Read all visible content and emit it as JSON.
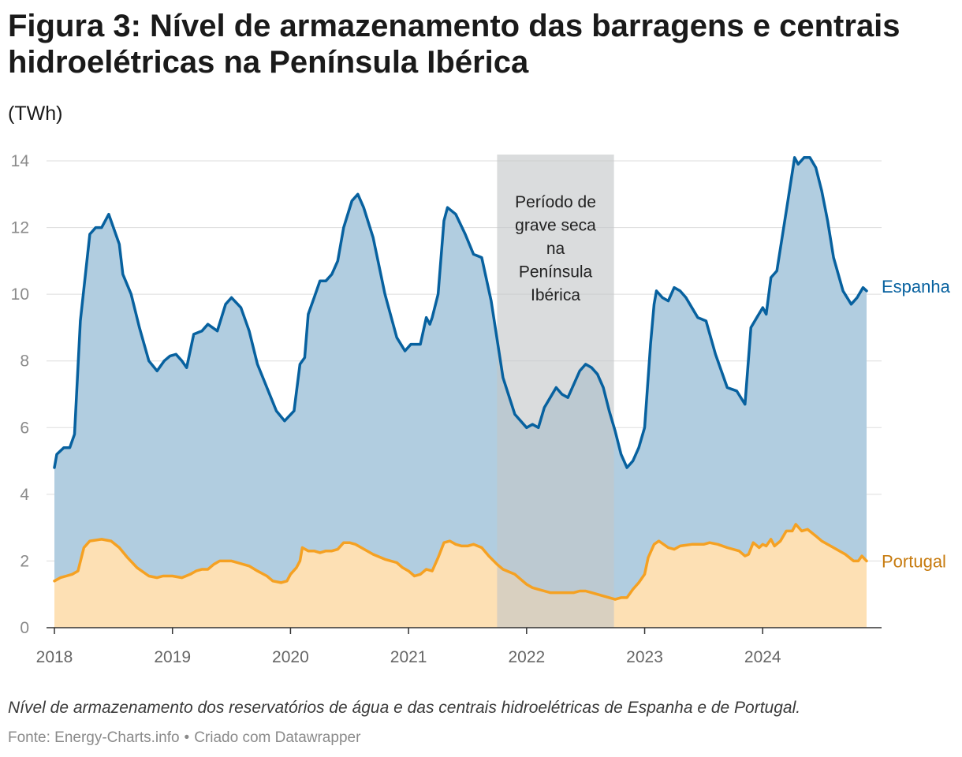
{
  "title": "Figura 3: Nível de armazenamento das barragens e centrais hidroelétricas na Península Ibérica",
  "unit_label": "(TWh)",
  "caption": "Nível de armazenamento dos reservatórios de água e das centrais hidroelétricas de Espanha e de Portugal.",
  "source": {
    "text": "Fonte: Energy-Charts.info",
    "separator": "•",
    "credit": "Criado com Datawrapper"
  },
  "colors": {
    "espanha_line": "#07619f",
    "espanha_fill": "#b1cde0",
    "portugal_line": "#f5a122",
    "portugal_fill": "#fde0b4",
    "portugal_label": "#c77b0f",
    "shade": "#c4c6c8",
    "grid": "#dddddd"
  },
  "chart_data": {
    "type": "area",
    "title": "Nível de armazenamento das barragens e centrais hidroelétricas na Península Ibérica",
    "xlabel": "",
    "ylabel": "(TWh)",
    "xlim": [
      2018.0,
      2024.9
    ],
    "ylim": [
      0,
      14
    ],
    "x_ticks": [
      2018,
      2019,
      2020,
      2021,
      2022,
      2023,
      2024
    ],
    "x_tick_labels": [
      "2018",
      "2019",
      "2020",
      "2021",
      "2022",
      "2023",
      "2024"
    ],
    "y_ticks": [
      0,
      2,
      4,
      6,
      8,
      10,
      12,
      14
    ],
    "y_tick_labels": [
      "0",
      "2",
      "4",
      "6",
      "8",
      "10",
      "12",
      "14"
    ],
    "shaded_region": {
      "x_start": 2021.75,
      "x_end": 2022.74,
      "label_lines": [
        "Período de",
        "grave seca",
        "na",
        "Península",
        "Ibérica"
      ]
    },
    "series": [
      {
        "name": "Espanha",
        "points": [
          [
            2018.0,
            4.8
          ],
          [
            2018.02,
            5.2
          ],
          [
            2018.08,
            5.4
          ],
          [
            2018.13,
            5.4
          ],
          [
            2018.17,
            5.8
          ],
          [
            2018.22,
            9.2
          ],
          [
            2018.3,
            11.8
          ],
          [
            2018.35,
            12.0
          ],
          [
            2018.4,
            12.0
          ],
          [
            2018.46,
            12.4
          ],
          [
            2018.55,
            11.5
          ],
          [
            2018.58,
            10.6
          ],
          [
            2018.65,
            10.0
          ],
          [
            2018.72,
            9.0
          ],
          [
            2018.8,
            8.0
          ],
          [
            2018.87,
            7.7
          ],
          [
            2018.93,
            8.0
          ],
          [
            2018.98,
            8.15
          ],
          [
            2019.03,
            8.2
          ],
          [
            2019.08,
            8.0
          ],
          [
            2019.12,
            7.8
          ],
          [
            2019.18,
            8.8
          ],
          [
            2019.25,
            8.9
          ],
          [
            2019.3,
            9.1
          ],
          [
            2019.38,
            8.9
          ],
          [
            2019.45,
            9.7
          ],
          [
            2019.5,
            9.9
          ],
          [
            2019.58,
            9.6
          ],
          [
            2019.65,
            8.9
          ],
          [
            2019.72,
            7.9
          ],
          [
            2019.8,
            7.2
          ],
          [
            2019.88,
            6.5
          ],
          [
            2019.95,
            6.2
          ],
          [
            2020.03,
            6.5
          ],
          [
            2020.08,
            7.9
          ],
          [
            2020.12,
            8.1
          ],
          [
            2020.15,
            9.4
          ],
          [
            2020.2,
            9.9
          ],
          [
            2020.25,
            10.4
          ],
          [
            2020.3,
            10.4
          ],
          [
            2020.35,
            10.6
          ],
          [
            2020.4,
            11.0
          ],
          [
            2020.45,
            12.0
          ],
          [
            2020.52,
            12.8
          ],
          [
            2020.57,
            13.0
          ],
          [
            2020.62,
            12.6
          ],
          [
            2020.7,
            11.7
          ],
          [
            2020.8,
            10.0
          ],
          [
            2020.9,
            8.7
          ],
          [
            2020.97,
            8.3
          ],
          [
            2021.02,
            8.5
          ],
          [
            2021.06,
            8.5
          ],
          [
            2021.1,
            8.5
          ],
          [
            2021.15,
            9.3
          ],
          [
            2021.18,
            9.1
          ],
          [
            2021.2,
            9.3
          ],
          [
            2021.25,
            10.0
          ],
          [
            2021.3,
            12.2
          ],
          [
            2021.33,
            12.6
          ],
          [
            2021.4,
            12.4
          ],
          [
            2021.48,
            11.8
          ],
          [
            2021.55,
            11.2
          ],
          [
            2021.62,
            11.1
          ],
          [
            2021.7,
            9.8
          ],
          [
            2021.8,
            7.5
          ],
          [
            2021.9,
            6.4
          ],
          [
            2022.0,
            6.0
          ],
          [
            2022.05,
            6.1
          ],
          [
            2022.1,
            6.0
          ],
          [
            2022.15,
            6.6
          ],
          [
            2022.2,
            6.9
          ],
          [
            2022.25,
            7.2
          ],
          [
            2022.3,
            7.0
          ],
          [
            2022.35,
            6.9
          ],
          [
            2022.4,
            7.3
          ],
          [
            2022.45,
            7.7
          ],
          [
            2022.5,
            7.9
          ],
          [
            2022.55,
            7.8
          ],
          [
            2022.6,
            7.6
          ],
          [
            2022.65,
            7.2
          ],
          [
            2022.7,
            6.5
          ],
          [
            2022.75,
            5.9
          ],
          [
            2022.8,
            5.2
          ],
          [
            2022.85,
            4.8
          ],
          [
            2022.9,
            5.0
          ],
          [
            2022.95,
            5.4
          ],
          [
            2023.0,
            6.0
          ],
          [
            2023.05,
            8.5
          ],
          [
            2023.08,
            9.7
          ],
          [
            2023.1,
            10.1
          ],
          [
            2023.15,
            9.9
          ],
          [
            2023.2,
            9.8
          ],
          [
            2023.25,
            10.2
          ],
          [
            2023.3,
            10.1
          ],
          [
            2023.35,
            9.9
          ],
          [
            2023.45,
            9.3
          ],
          [
            2023.52,
            9.2
          ],
          [
            2023.6,
            8.2
          ],
          [
            2023.7,
            7.2
          ],
          [
            2023.78,
            7.1
          ],
          [
            2023.85,
            6.7
          ],
          [
            2023.9,
            9.0
          ],
          [
            2023.95,
            9.3
          ],
          [
            2024.0,
            9.6
          ],
          [
            2024.03,
            9.4
          ],
          [
            2024.07,
            10.5
          ],
          [
            2024.12,
            10.7
          ],
          [
            2024.2,
            12.5
          ],
          [
            2024.27,
            14.1
          ],
          [
            2024.3,
            13.9
          ],
          [
            2024.35,
            14.1
          ],
          [
            2024.4,
            14.1
          ],
          [
            2024.45,
            13.8
          ],
          [
            2024.5,
            13.1
          ],
          [
            2024.55,
            12.2
          ],
          [
            2024.6,
            11.1
          ],
          [
            2024.68,
            10.1
          ],
          [
            2024.75,
            9.7
          ],
          [
            2024.8,
            9.9
          ],
          [
            2024.85,
            10.2
          ],
          [
            2024.88,
            10.1
          ]
        ]
      },
      {
        "name": "Portugal",
        "points": [
          [
            2018.0,
            1.4
          ],
          [
            2018.05,
            1.5
          ],
          [
            2018.1,
            1.55
          ],
          [
            2018.15,
            1.6
          ],
          [
            2018.2,
            1.7
          ],
          [
            2018.25,
            2.4
          ],
          [
            2018.3,
            2.6
          ],
          [
            2018.4,
            2.65
          ],
          [
            2018.48,
            2.6
          ],
          [
            2018.55,
            2.4
          ],
          [
            2018.62,
            2.1
          ],
          [
            2018.7,
            1.8
          ],
          [
            2018.8,
            1.55
          ],
          [
            2018.87,
            1.5
          ],
          [
            2018.92,
            1.55
          ],
          [
            2019.0,
            1.55
          ],
          [
            2019.08,
            1.5
          ],
          [
            2019.15,
            1.6
          ],
          [
            2019.2,
            1.7
          ],
          [
            2019.25,
            1.75
          ],
          [
            2019.3,
            1.75
          ],
          [
            2019.35,
            1.9
          ],
          [
            2019.4,
            2.0
          ],
          [
            2019.45,
            2.0
          ],
          [
            2019.5,
            2.0
          ],
          [
            2019.55,
            1.95
          ],
          [
            2019.65,
            1.85
          ],
          [
            2019.72,
            1.7
          ],
          [
            2019.8,
            1.55
          ],
          [
            2019.85,
            1.4
          ],
          [
            2019.92,
            1.35
          ],
          [
            2019.97,
            1.4
          ],
          [
            2020.0,
            1.6
          ],
          [
            2020.05,
            1.8
          ],
          [
            2020.08,
            2.0
          ],
          [
            2020.1,
            2.4
          ],
          [
            2020.15,
            2.3
          ],
          [
            2020.2,
            2.3
          ],
          [
            2020.25,
            2.25
          ],
          [
            2020.3,
            2.3
          ],
          [
            2020.35,
            2.3
          ],
          [
            2020.4,
            2.35
          ],
          [
            2020.45,
            2.55
          ],
          [
            2020.5,
            2.55
          ],
          [
            2020.55,
            2.5
          ],
          [
            2020.6,
            2.4
          ],
          [
            2020.7,
            2.2
          ],
          [
            2020.8,
            2.05
          ],
          [
            2020.9,
            1.95
          ],
          [
            2020.95,
            1.8
          ],
          [
            2021.0,
            1.7
          ],
          [
            2021.05,
            1.55
          ],
          [
            2021.1,
            1.6
          ],
          [
            2021.15,
            1.75
          ],
          [
            2021.2,
            1.7
          ],
          [
            2021.25,
            2.1
          ],
          [
            2021.3,
            2.55
          ],
          [
            2021.35,
            2.6
          ],
          [
            2021.4,
            2.5
          ],
          [
            2021.45,
            2.45
          ],
          [
            2021.5,
            2.45
          ],
          [
            2021.55,
            2.5
          ],
          [
            2021.62,
            2.4
          ],
          [
            2021.68,
            2.15
          ],
          [
            2021.75,
            1.9
          ],
          [
            2021.8,
            1.75
          ],
          [
            2021.9,
            1.6
          ],
          [
            2021.95,
            1.45
          ],
          [
            2022.0,
            1.3
          ],
          [
            2022.05,
            1.2
          ],
          [
            2022.1,
            1.15
          ],
          [
            2022.15,
            1.1
          ],
          [
            2022.2,
            1.05
          ],
          [
            2022.25,
            1.05
          ],
          [
            2022.3,
            1.05
          ],
          [
            2022.35,
            1.05
          ],
          [
            2022.4,
            1.05
          ],
          [
            2022.45,
            1.1
          ],
          [
            2022.5,
            1.1
          ],
          [
            2022.55,
            1.05
          ],
          [
            2022.6,
            1.0
          ],
          [
            2022.65,
            0.95
          ],
          [
            2022.7,
            0.9
          ],
          [
            2022.75,
            0.85
          ],
          [
            2022.8,
            0.9
          ],
          [
            2022.85,
            0.9
          ],
          [
            2022.9,
            1.15
          ],
          [
            2022.95,
            1.35
          ],
          [
            2023.0,
            1.6
          ],
          [
            2023.03,
            2.1
          ],
          [
            2023.08,
            2.5
          ],
          [
            2023.12,
            2.6
          ],
          [
            2023.2,
            2.4
          ],
          [
            2023.25,
            2.35
          ],
          [
            2023.3,
            2.45
          ],
          [
            2023.4,
            2.5
          ],
          [
            2023.5,
            2.5
          ],
          [
            2023.55,
            2.55
          ],
          [
            2023.62,
            2.5
          ],
          [
            2023.7,
            2.4
          ],
          [
            2023.8,
            2.3
          ],
          [
            2023.85,
            2.15
          ],
          [
            2023.88,
            2.2
          ],
          [
            2023.92,
            2.55
          ],
          [
            2023.97,
            2.4
          ],
          [
            2024.0,
            2.5
          ],
          [
            2024.03,
            2.45
          ],
          [
            2024.07,
            2.65
          ],
          [
            2024.1,
            2.45
          ],
          [
            2024.15,
            2.6
          ],
          [
            2024.2,
            2.9
          ],
          [
            2024.25,
            2.9
          ],
          [
            2024.28,
            3.1
          ],
          [
            2024.33,
            2.9
          ],
          [
            2024.38,
            2.95
          ],
          [
            2024.45,
            2.75
          ],
          [
            2024.5,
            2.6
          ],
          [
            2024.6,
            2.4
          ],
          [
            2024.7,
            2.2
          ],
          [
            2024.77,
            2.0
          ],
          [
            2024.81,
            2.0
          ],
          [
            2024.84,
            2.15
          ],
          [
            2024.88,
            2.0
          ]
        ]
      }
    ]
  }
}
